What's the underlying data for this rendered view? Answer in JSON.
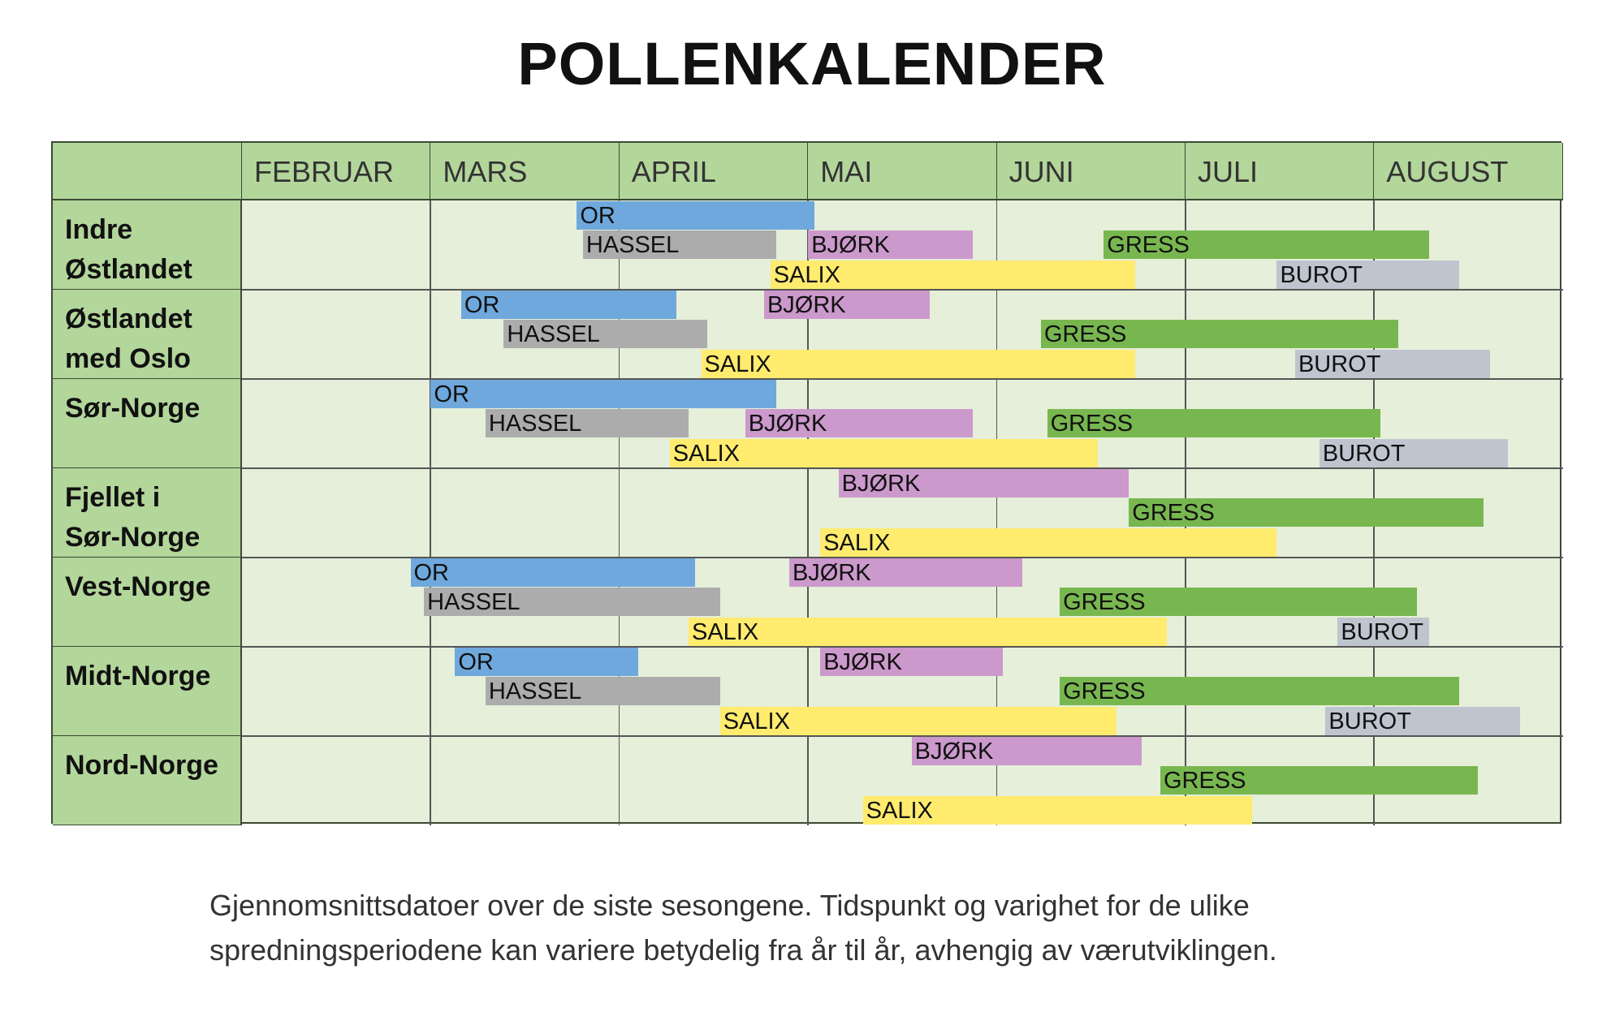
{
  "title": "POLLENKALENDER",
  "chart_data": {
    "type": "gantt",
    "title": "POLLENKALENDER",
    "months": [
      "FEBRUAR",
      "MARS",
      "APRIL",
      "MAI",
      "JUNI",
      "JULI",
      "AUGUST"
    ],
    "colors": {
      "OR": "#6fa8dc",
      "HASSEL": "#acacac",
      "BJØRK": "#cc99cc",
      "SALIX": "#ffeb6e",
      "GRESS": "#78b74f",
      "BUROT": "#bec5cf"
    },
    "regions": [
      {
        "name": "Indre Østlandet",
        "lines": [
          "Indre",
          "Østlandet"
        ],
        "bars": [
          {
            "label": "OR",
            "start": "03-25",
            "end": "05-02",
            "lane": 0
          },
          {
            "label": "HASSEL",
            "start": "03-26",
            "end": "04-26",
            "lane": 1
          },
          {
            "label": "BJØRK",
            "start": "05-01",
            "end": "05-28",
            "lane": 1
          },
          {
            "label": "SALIX",
            "start": "04-25",
            "end": "06-23",
            "lane": 2
          },
          {
            "label": "GRESS",
            "start": "06-18",
            "end": "08-10",
            "lane": 1
          },
          {
            "label": "BUROT",
            "start": "07-16",
            "end": "08-15",
            "lane": 2
          }
        ]
      },
      {
        "name": "Østlandet med Oslo",
        "lines": [
          "Østlandet",
          "med Oslo"
        ],
        "bars": [
          {
            "label": "OR",
            "start": "03-06",
            "end": "04-10",
            "lane": 0
          },
          {
            "label": "HASSEL",
            "start": "03-13",
            "end": "04-15",
            "lane": 1
          },
          {
            "label": "BJØRK",
            "start": "04-24",
            "end": "05-21",
            "lane": 0
          },
          {
            "label": "SALIX",
            "start": "04-14",
            "end": "06-23",
            "lane": 2
          },
          {
            "label": "GRESS",
            "start": "06-08",
            "end": "08-05",
            "lane": 1
          },
          {
            "label": "BUROT",
            "start": "07-19",
            "end": "08-20",
            "lane": 2
          }
        ]
      },
      {
        "name": "Sør-Norge",
        "lines": [
          "Sør-Norge"
        ],
        "bars": [
          {
            "label": "OR",
            "start": "03-01",
            "end": "04-26",
            "lane": 0
          },
          {
            "label": "HASSEL",
            "start": "03-10",
            "end": "04-12",
            "lane": 1
          },
          {
            "label": "BJØRK",
            "start": "04-21",
            "end": "05-28",
            "lane": 1
          },
          {
            "label": "SALIX",
            "start": "04-09",
            "end": "06-17",
            "lane": 2
          },
          {
            "label": "GRESS",
            "start": "06-09",
            "end": "08-02",
            "lane": 1
          },
          {
            "label": "BUROT",
            "start": "07-23",
            "end": "08-23",
            "lane": 2
          }
        ]
      },
      {
        "name": "Fjellet i Sør-Norge",
        "lines": [
          "Fjellet i",
          "Sør-Norge"
        ],
        "bars": [
          {
            "label": "BJØRK",
            "start": "05-06",
            "end": "06-22",
            "lane": 0
          },
          {
            "label": "GRESS",
            "start": "06-22",
            "end": "08-19",
            "lane": 1
          },
          {
            "label": "SALIX",
            "start": "05-03",
            "end": "07-16",
            "lane": 2
          }
        ]
      },
      {
        "name": "Vest-Norge",
        "lines": [
          "Vest-Norge"
        ],
        "bars": [
          {
            "label": "OR",
            "start": "02-26",
            "end": "04-13",
            "lane": 0
          },
          {
            "label": "HASSEL",
            "start": "02-28",
            "end": "04-17",
            "lane": 1
          },
          {
            "label": "BJØRK",
            "start": "04-28",
            "end": "06-05",
            "lane": 0
          },
          {
            "label": "SALIX",
            "start": "04-12",
            "end": "06-28",
            "lane": 2
          },
          {
            "label": "GRESS",
            "start": "06-11",
            "end": "08-08",
            "lane": 1
          },
          {
            "label": "BUROT",
            "start": "07-26",
            "end": "08-10",
            "lane": 2
          }
        ]
      },
      {
        "name": "Midt-Norge",
        "lines": [
          "Midt-Norge"
        ],
        "bars": [
          {
            "label": "OR",
            "start": "03-05",
            "end": "04-04",
            "lane": 0
          },
          {
            "label": "HASSEL",
            "start": "03-10",
            "end": "04-17",
            "lane": 1
          },
          {
            "label": "BJØRK",
            "start": "05-03",
            "end": "06-02",
            "lane": 0
          },
          {
            "label": "SALIX",
            "start": "04-17",
            "end": "06-20",
            "lane": 2
          },
          {
            "label": "GRESS",
            "start": "06-11",
            "end": "08-15",
            "lane": 1
          },
          {
            "label": "BUROT",
            "start": "07-24",
            "end": "08-25",
            "lane": 2
          }
        ]
      },
      {
        "name": "Nord-Norge",
        "lines": [
          "Nord-Norge"
        ],
        "bars": [
          {
            "label": "BJØRK",
            "start": "05-18",
            "end": "06-24",
            "lane": 0
          },
          {
            "label": "GRESS",
            "start": "06-27",
            "end": "08-18",
            "lane": 1
          },
          {
            "label": "SALIX",
            "start": "05-10",
            "end": "07-12",
            "lane": 2
          }
        ]
      }
    ]
  },
  "footer": {
    "lines": [
      "Gjennomsnittsdatoer over de siste sesongene. Tidspunkt og varighet for de ulike",
      "spredningsperiodene kan variere betydelig fra år til år, avhengig av værutviklingen."
    ]
  }
}
